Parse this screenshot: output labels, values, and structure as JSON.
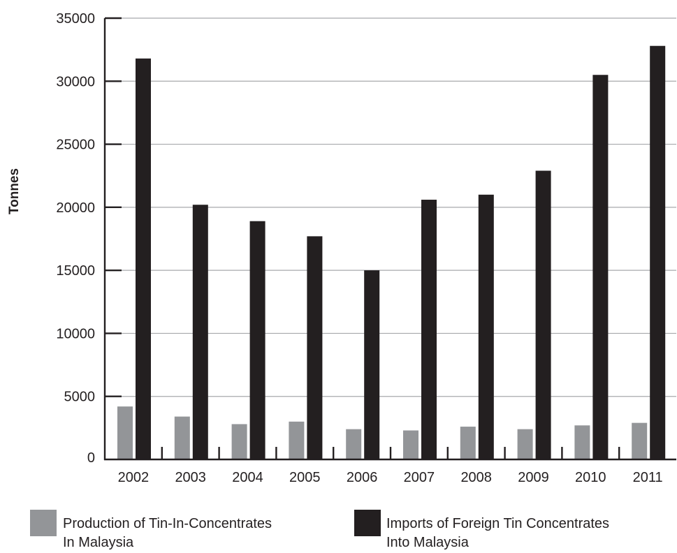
{
  "chart_data": {
    "type": "bar",
    "ylabel": "Tonnes",
    "xlabel": "",
    "ylim": [
      0,
      35000
    ],
    "yticks": [
      0,
      5000,
      10000,
      15000,
      20000,
      25000,
      30000,
      35000
    ],
    "grid": true,
    "legend_position": "bottom",
    "categories": [
      "2002",
      "2003",
      "2004",
      "2005",
      "2006",
      "2007",
      "2008",
      "2009",
      "2010",
      "2011"
    ],
    "series": [
      {
        "name": "Production of Tin-In-Concentrates In Malaysia",
        "legend_lines": [
          "Production of Tin-In-Concentrates",
          "In Malaysia"
        ],
        "color": "#939598",
        "values": [
          4200,
          3400,
          2800,
          3000,
          2400,
          2300,
          2600,
          2400,
          2700,
          2900
        ]
      },
      {
        "name": "Imports of Foreign Tin Concentrates Into Malaysia",
        "legend_lines": [
          "Imports of Foreign Tin Concentrates",
          "Into Malaysia"
        ],
        "color": "#231f20",
        "values": [
          31800,
          20200,
          18900,
          17700,
          15000,
          20600,
          21000,
          22900,
          30500,
          32800
        ]
      }
    ]
  }
}
